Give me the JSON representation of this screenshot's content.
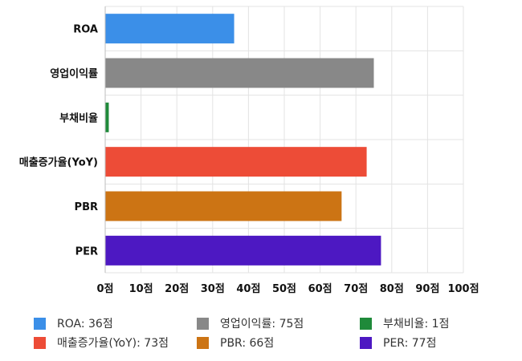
{
  "chart_data": {
    "type": "bar",
    "orientation": "horizontal",
    "categories": [
      "ROA",
      "영업이익률",
      "부채비율",
      "매출증가율(YoY)",
      "PBR",
      "PER"
    ],
    "values": [
      36,
      75,
      1,
      73,
      66,
      77
    ],
    "colors": [
      "#3b8fe8",
      "#888888",
      "#1f8a3a",
      "#ed4c37",
      "#cc7414",
      "#4d18c2"
    ],
    "xlim": [
      0,
      100
    ],
    "xticks": [
      0,
      10,
      20,
      30,
      40,
      50,
      60,
      70,
      80,
      90,
      100
    ],
    "tick_suffix": "점",
    "grid": true,
    "legend_position": "bottom"
  },
  "legend": [
    {
      "label": "ROA: 36점",
      "color": "#3b8fe8"
    },
    {
      "label": "영업이익률: 75점",
      "color": "#888888"
    },
    {
      "label": "부채비율: 1점",
      "color": "#1f8a3a"
    },
    {
      "label": "매출증가율(YoY): 73점",
      "color": "#ed4c37"
    },
    {
      "label": "PBR: 66점",
      "color": "#cc7414"
    },
    {
      "label": "PER: 77점",
      "color": "#4d18c2"
    }
  ]
}
